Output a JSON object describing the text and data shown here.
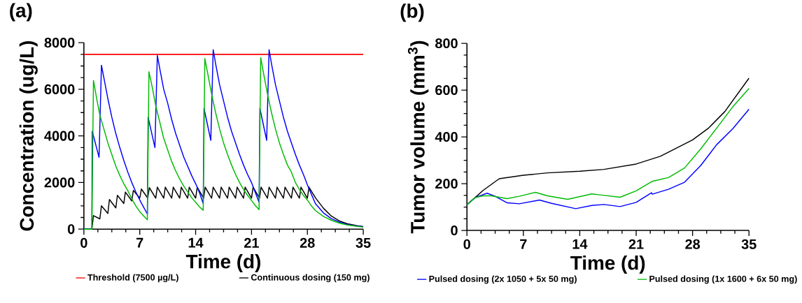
{
  "chart_data": [
    {
      "type": "line",
      "title": "(a)",
      "xlabel": "Time (d)",
      "ylabel": "Concentration (ug/L)",
      "xlim": [
        0,
        35
      ],
      "xticks": [
        0,
        7,
        14,
        21,
        28,
        35
      ],
      "ylim": [
        0,
        8000
      ],
      "yticks": [
        0,
        2000,
        4000,
        6000,
        8000
      ],
      "legend": "bottom",
      "ref_lines": [
        {
          "axis": "y",
          "value": 7500,
          "label": "Threshold (7500 µg/L)",
          "color": "#ff0000"
        }
      ],
      "series": [
        {
          "name": "Continuous dosing (150 mg)",
          "color": "#000000",
          "x": [
            0,
            1,
            1.2,
            2,
            2.2,
            3,
            3.2,
            4,
            4.2,
            5,
            5.2,
            6,
            6.2,
            7,
            7.2,
            8,
            8.2,
            9,
            9.2,
            10,
            10.2,
            11,
            11.2,
            12,
            12.2,
            13,
            13.2,
            14,
            14.2,
            15,
            15.2,
            16,
            16.2,
            17,
            17.2,
            18,
            18.2,
            19,
            19.2,
            20,
            20.2,
            21,
            21.2,
            22,
            22.2,
            23,
            23.2,
            24,
            24.2,
            25,
            25.2,
            26,
            26.2,
            27,
            27.2,
            28,
            28.2,
            29,
            30,
            31,
            32,
            33,
            34,
            35
          ],
          "values": [
            0,
            0,
            580,
            440,
            1000,
            670,
            1270,
            910,
            1450,
            1100,
            1590,
            1210,
            1660,
            1330,
            1720,
            1330,
            1780,
            1330,
            1800,
            1330,
            1800,
            1330,
            1800,
            1330,
            1800,
            1330,
            1800,
            1330,
            1800,
            1330,
            1800,
            1330,
            1800,
            1330,
            1800,
            1330,
            1800,
            1330,
            1800,
            1330,
            1800,
            1330,
            1800,
            1330,
            1800,
            1330,
            1800,
            1330,
            1800,
            1330,
            1800,
            1330,
            1800,
            1330,
            1800,
            1330,
            1800,
            1350,
            900,
            560,
            350,
            230,
            160,
            110
          ]
        },
        {
          "color": "#0000ff",
          "x": [
            0,
            1,
            1.05,
            1.9,
            2.2,
            2.5,
            3,
            3.5,
            4,
            4.5,
            5,
            5.5,
            6,
            6.5,
            7,
            7.5,
            7.95,
            8.05,
            8.9,
            9.2,
            9.5,
            10,
            10.5,
            11,
            11.5,
            12,
            12.5,
            13,
            13.5,
            14,
            14.5,
            14.95,
            15.05,
            15.9,
            16.2,
            16.5,
            17,
            17.5,
            18,
            18.5,
            19,
            19.5,
            20,
            20.5,
            21,
            21.5,
            21.95,
            22.05,
            22.9,
            23.2,
            23.5,
            24,
            24.5,
            25,
            25.5,
            26,
            26.5,
            27,
            27.5,
            28,
            28.5,
            29,
            30,
            31,
            32,
            33,
            34,
            35
          ],
          "values": [
            0,
            0,
            4200,
            3080,
            7030,
            6500,
            5600,
            4800,
            4100,
            3500,
            2950,
            2450,
            2000,
            1600,
            1250,
            930,
            650,
            4800,
            3500,
            7450,
            6900,
            6000,
            5400,
            4700,
            4100,
            3600,
            3100,
            2700,
            2300,
            1950,
            1550,
            1100,
            5180,
            3810,
            7700,
            7100,
            6200,
            5500,
            4800,
            4200,
            3700,
            3200,
            2750,
            2350,
            2000,
            1550,
            1150,
            5180,
            3810,
            7700,
            7100,
            6200,
            5500,
            4800,
            4200,
            3700,
            3200,
            2750,
            2350,
            1900,
            1500,
            1100,
            700,
            450,
            300,
            200,
            140,
            100
          ]
        },
        {
          "color": "#00bb00",
          "x": [
            0,
            1,
            1.2,
            1.6,
            2,
            2.5,
            3,
            3.5,
            4,
            4.5,
            5,
            5.5,
            6,
            6.5,
            7,
            7.5,
            7.95,
            8.15,
            8.5,
            9,
            9.5,
            10,
            10.5,
            11,
            11.5,
            12,
            12.5,
            13,
            13.5,
            14,
            14.5,
            14.95,
            15.15,
            15.5,
            16,
            16.5,
            17,
            17.5,
            18,
            18.5,
            19,
            19.5,
            20,
            20.5,
            21,
            21.5,
            21.95,
            22.15,
            22.5,
            23,
            23.5,
            24,
            24.5,
            25,
            25.5,
            26,
            26.5,
            27,
            27.5,
            28,
            28.5,
            29,
            30,
            31,
            32,
            33,
            34,
            35
          ],
          "values": [
            0,
            0,
            6380,
            5600,
            4900,
            4300,
            3700,
            3200,
            2700,
            2300,
            1950,
            1650,
            1300,
            1000,
            750,
            560,
            400,
            6750,
            6200,
            5300,
            4600,
            3900,
            3400,
            2900,
            2500,
            2150,
            1850,
            1600,
            1350,
            1150,
            950,
            810,
            7320,
            6700,
            5800,
            5000,
            4300,
            3700,
            3200,
            2750,
            2350,
            2000,
            1700,
            1450,
            1230,
            1000,
            840,
            7360,
            6700,
            5800,
            5000,
            4300,
            3700,
            3200,
            2750,
            2450,
            2000,
            1700,
            1450,
            1250,
            1000,
            800,
            550,
            380,
            260,
            180,
            130,
            90
          ]
        }
      ]
    },
    {
      "type": "line",
      "title": "(b)",
      "xlabel": "Time (d)",
      "ylabel": "Tumor volume (mm$^{3}$)",
      "xlim": [
        0,
        35
      ],
      "xticks": [
        0,
        7,
        14,
        21,
        28,
        35
      ],
      "ylim": [
        0,
        800
      ],
      "yticks": [
        0,
        200,
        400,
        600,
        800
      ],
      "legend": "bottom",
      "series": [
        {
          "color": "#000000",
          "x": [
            0,
            1,
            2,
            4,
            7,
            10,
            14,
            17,
            21,
            24,
            28,
            30,
            32,
            35
          ],
          "values": [
            110,
            140,
            171,
            221,
            236,
            246,
            253,
            261,
            284,
            317,
            387,
            438,
            508,
            651
          ]
        },
        {
          "name": "Pulsed dosing (2x 1050 + 5x 50 mg)",
          "color": "#0000ff",
          "x": [
            0,
            1,
            2.5,
            3.5,
            5,
            6.5,
            9,
            10.5,
            13.5,
            15.5,
            17,
            19,
            21,
            22.9,
            23,
            25,
            27,
            29,
            31,
            33,
            35
          ],
          "values": [
            110,
            140,
            159,
            146,
            118,
            114,
            130,
            116,
            93,
            107,
            111,
            102,
            120,
            161,
            155,
            176,
            206,
            277,
            367,
            435,
            518
          ]
        },
        {
          "name": "Pulsed dosing (1x 1600 + 6x 50 mg)",
          "color": "#00bb00",
          "x": [
            0,
            1,
            2,
            3,
            5,
            6.5,
            8.5,
            10,
            12.5,
            15.5,
            16.5,
            19,
            21,
            23,
            25,
            27,
            29,
            31,
            33,
            35
          ],
          "values": [
            110,
            140,
            148,
            148,
            136,
            146,
            163,
            148,
            133,
            156,
            152,
            142,
            169,
            210,
            226,
            267,
            348,
            438,
            529,
            607
          ]
        }
      ]
    }
  ]
}
